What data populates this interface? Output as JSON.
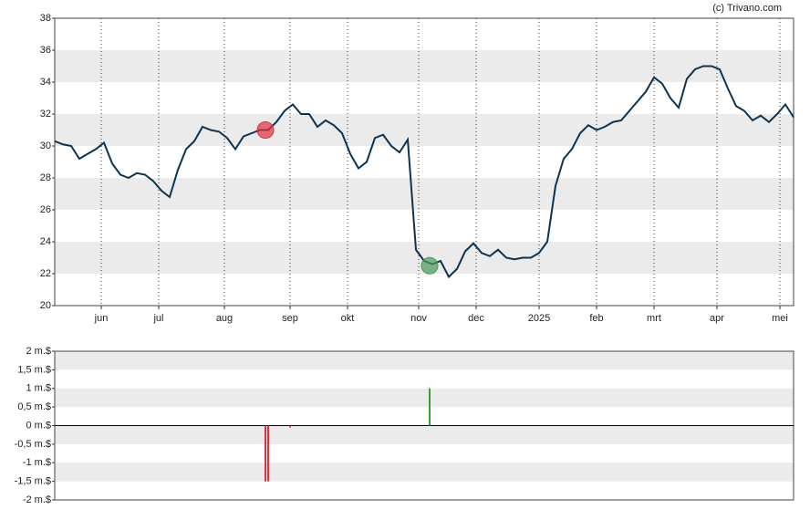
{
  "credit": "(c) Trivano.com",
  "chart_data": [
    {
      "type": "line",
      "xlim": [
        0,
        270
      ],
      "ylim": [
        20,
        38
      ],
      "yticks": [
        20,
        22,
        24,
        26,
        28,
        30,
        32,
        34,
        36,
        38
      ],
      "xticks": [
        {
          "value": 17,
          "label": "jun"
        },
        {
          "value": 38,
          "label": "jul"
        },
        {
          "value": 62,
          "label": "aug"
        },
        {
          "value": 86,
          "label": "sep"
        },
        {
          "value": 107,
          "label": "okt"
        },
        {
          "value": 133,
          "label": "nov"
        },
        {
          "value": 154,
          "label": "dec"
        },
        {
          "value": 177,
          "label": "2025"
        },
        {
          "value": 198,
          "label": "feb"
        },
        {
          "value": 219,
          "label": "mrt"
        },
        {
          "value": 242,
          "label": "apr"
        },
        {
          "value": 265,
          "label": "mei"
        }
      ],
      "grid": true,
      "x": [
        0,
        3,
        6,
        9,
        12,
        15,
        18,
        21,
        24,
        27,
        30,
        33,
        36,
        39,
        42,
        45,
        48,
        51,
        54,
        57,
        60,
        63,
        66,
        69,
        72,
        75,
        78,
        81,
        84,
        87,
        90,
        93,
        96,
        99,
        102,
        105,
        108,
        111,
        114,
        117,
        120,
        123,
        126,
        129,
        132,
        135,
        138,
        141,
        144,
        147,
        150,
        153,
        156,
        159,
        162,
        165,
        168,
        171,
        174,
        177,
        180,
        183,
        186,
        189,
        192,
        195,
        198,
        201,
        204,
        207,
        210,
        213,
        216,
        219,
        222,
        225,
        228,
        231,
        234,
        237,
        240,
        243,
        246,
        249,
        252,
        255,
        258,
        261,
        264,
        267,
        270
      ],
      "series": [
        {
          "color": "#0d3350",
          "values": [
            30.3,
            30.1,
            30.0,
            29.2,
            29.5,
            29.8,
            30.2,
            28.9,
            28.2,
            28.0,
            28.3,
            28.2,
            27.8,
            27.2,
            26.8,
            28.5,
            29.8,
            30.3,
            31.2,
            31.0,
            30.9,
            30.5,
            29.8,
            30.6,
            30.8,
            31.0,
            31.0,
            31.5,
            32.2,
            32.6,
            32.0,
            32.0,
            31.2,
            31.6,
            31.3,
            30.8,
            29.5,
            28.6,
            29.0,
            30.5,
            30.7,
            30.0,
            29.6,
            30.4,
            23.5,
            22.8,
            22.6,
            22.8,
            21.8,
            22.3,
            23.4,
            23.9,
            23.3,
            23.1,
            23.5,
            23.0,
            22.9,
            23.0,
            23.0,
            23.3,
            24.0,
            27.5,
            29.2,
            29.8,
            30.8,
            31.3,
            31.0,
            31.2,
            31.5,
            31.6,
            32.2,
            32.8,
            33.4,
            34.3,
            33.9,
            33.0,
            32.4,
            34.2,
            34.8,
            35.0,
            35.0,
            34.8,
            33.6,
            32.5,
            32.2,
            31.6,
            31.9,
            31.5,
            32.0,
            32.6,
            31.8
          ]
        }
      ],
      "markers": [
        {
          "x": 77,
          "value": 31.0,
          "color": "#e0303f"
        },
        {
          "x": 137,
          "value": 22.5,
          "color": "#4a9a5a"
        }
      ]
    },
    {
      "type": "bar",
      "xlim": [
        0,
        270
      ],
      "ylim": [
        -2,
        2
      ],
      "yticks": [
        {
          "value": -2,
          "label": "-2 m.$"
        },
        {
          "value": -1.5,
          "label": "-1,5 m.$"
        },
        {
          "value": -1,
          "label": "-1 m.$"
        },
        {
          "value": -0.5,
          "label": "-0,5 m.$"
        },
        {
          "value": 0,
          "label": "0 m.$"
        },
        {
          "value": 0.5,
          "label": "0,5 m.$"
        },
        {
          "value": 1,
          "label": "1 m.$"
        },
        {
          "value": 1.5,
          "label": "1,5 m.$"
        },
        {
          "value": 2,
          "label": "2 m.$"
        }
      ],
      "grid": true,
      "x": [
        77,
        78,
        86,
        137
      ],
      "series": [
        {
          "values": [
            -1.5,
            -1.5,
            -0.05,
            1.0
          ],
          "colors": [
            "#e0303f",
            "#e0303f",
            "#e0303f",
            "#3a9a3a"
          ]
        }
      ]
    }
  ]
}
